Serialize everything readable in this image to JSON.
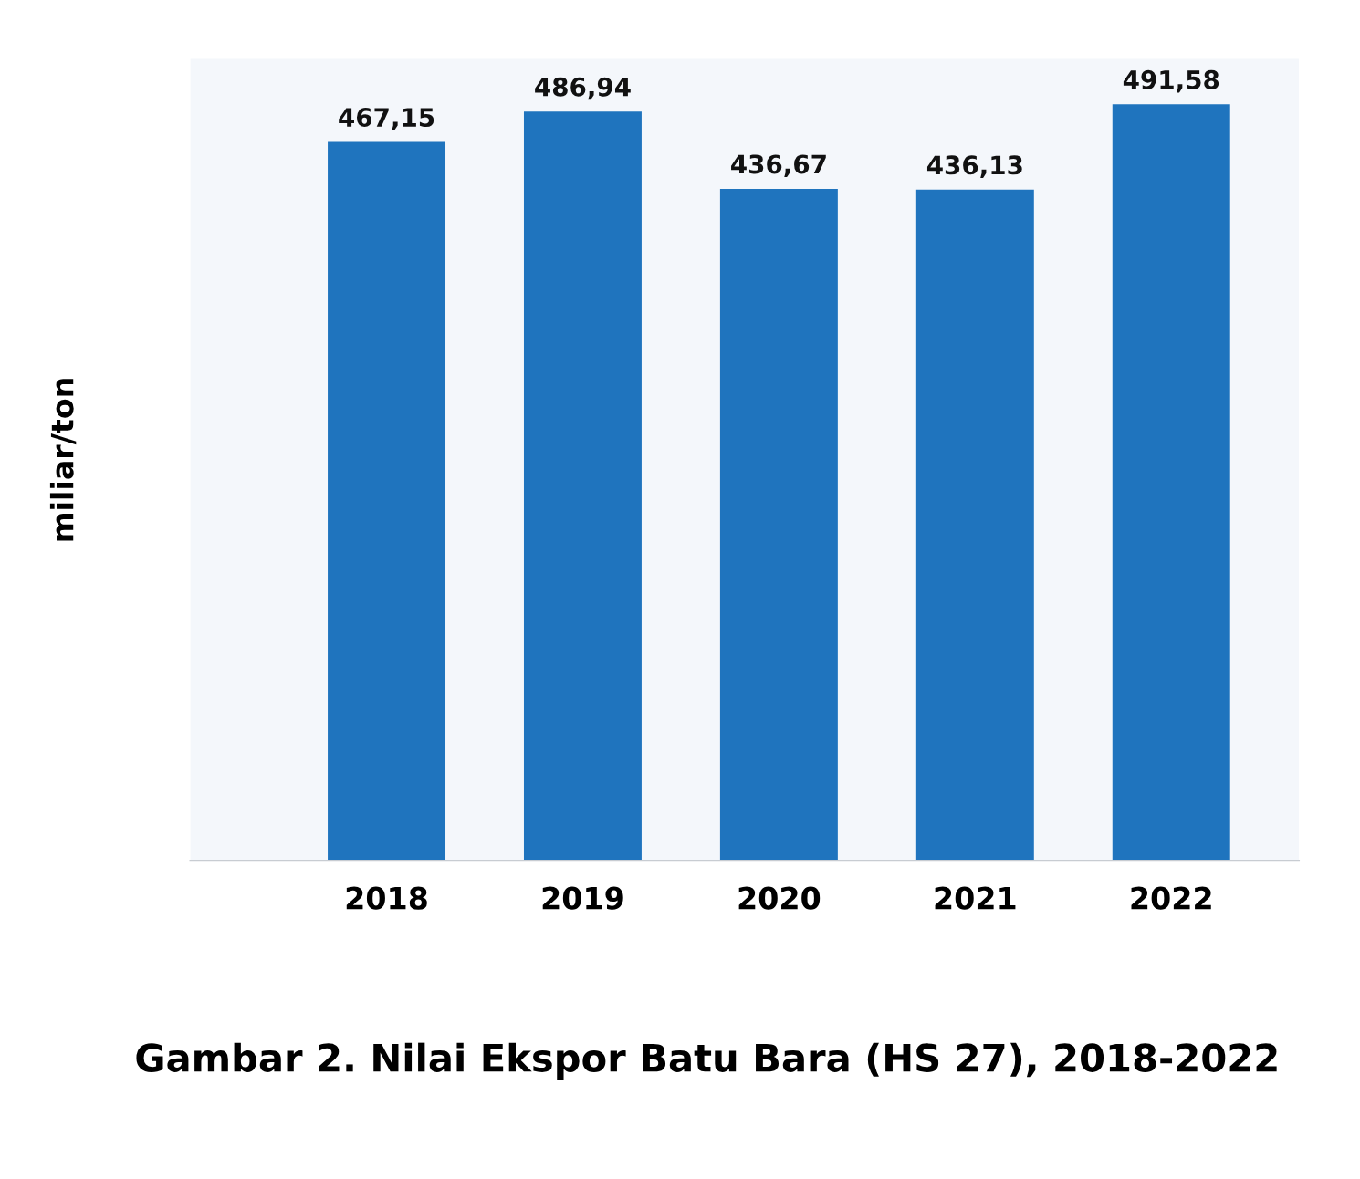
{
  "chart_data": {
    "type": "bar",
    "title": "Gambar 2. Nilai Ekspor Batu Bara (HS 27), 2018-2022",
    "ylabel": "miliar/ton",
    "categories": [
      "2018",
      "2019",
      "2020",
      "2021",
      "2022"
    ],
    "values": [
      467.15,
      486.94,
      436.67,
      436.13,
      491.58
    ],
    "value_labels": [
      "467,15",
      "486,94",
      "436,67",
      "436,13",
      "491,58"
    ],
    "color": "#1f74be",
    "grid": false,
    "legend": false,
    "tick_labels": "x"
  }
}
